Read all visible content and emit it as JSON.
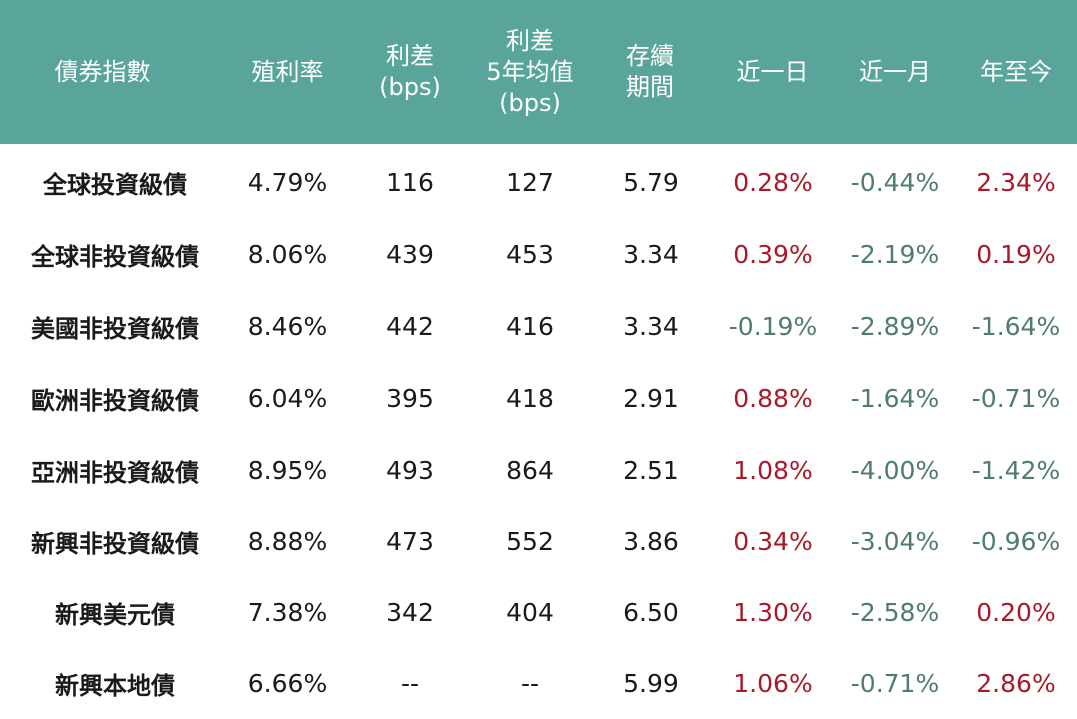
{
  "columns": [
    "債券指數",
    "殖利率",
    "利差\n(bps)",
    "利差\n5年均值\n(bps)",
    "存續\n期間",
    "近一日",
    "近一月",
    "年至今"
  ],
  "rows": [
    {
      "name": "全球投資級債",
      "yield": "4.79%",
      "spread": "116",
      "spread_5y": "127",
      "duration": "5.79",
      "d1": "0.28%",
      "m1": "-0.44%",
      "ytd": "2.34%"
    },
    {
      "name": "全球非投資級債",
      "yield": "8.06%",
      "spread": "439",
      "spread_5y": "453",
      "duration": "3.34",
      "d1": "0.39%",
      "m1": "-2.19%",
      "ytd": "0.19%"
    },
    {
      "name": "美國非投資級債",
      "yield": "8.46%",
      "spread": "442",
      "spread_5y": "416",
      "duration": "3.34",
      "d1": "-0.19%",
      "m1": "-2.89%",
      "ytd": "-1.64%"
    },
    {
      "name": "歐洲非投資級債",
      "yield": "6.04%",
      "spread": "395",
      "spread_5y": "418",
      "duration": "2.91",
      "d1": "0.88%",
      "m1": "-1.64%",
      "ytd": "-0.71%"
    },
    {
      "name": "亞洲非投資級債",
      "yield": "8.95%",
      "spread": "493",
      "spread_5y": "864",
      "duration": "2.51",
      "d1": "1.08%",
      "m1": "-4.00%",
      "ytd": "-1.42%"
    },
    {
      "name": "新興非投資級債",
      "yield": "8.88%",
      "spread": "473",
      "spread_5y": "552",
      "duration": "3.86",
      "d1": "0.34%",
      "m1": "-3.04%",
      "ytd": "-0.96%"
    },
    {
      "name": "新興美元債",
      "yield": "7.38%",
      "spread": "342",
      "spread_5y": "404",
      "duration": "6.50",
      "d1": "1.30%",
      "m1": "-2.58%",
      "ytd": "0.20%"
    },
    {
      "name": "新興本地債",
      "yield": "6.66%",
      "spread": "--",
      "spread_5y": "--",
      "duration": "5.99",
      "d1": "1.06%",
      "m1": "-0.71%",
      "ytd": "2.86%"
    }
  ],
  "colors": {
    "header_bg": "#5aa59b",
    "header_text": "#ffffff",
    "positive": "#a8192a",
    "negative": "#4f7b71",
    "text": "#1a1a1a"
  }
}
